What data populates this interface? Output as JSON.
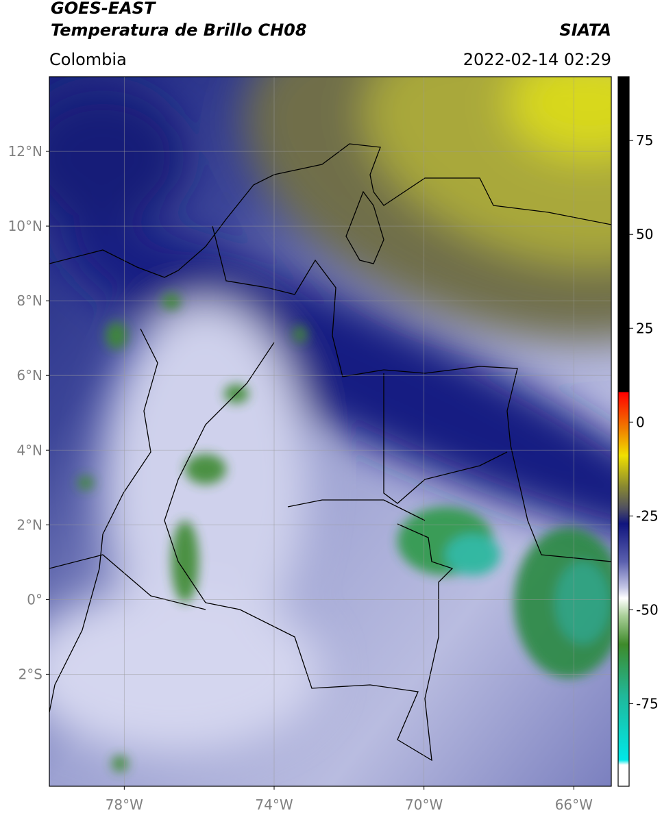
{
  "header": {
    "title": [
      "GOES-EAST",
      "Temperatura de Brillo CH08"
    ],
    "source": "SIATA",
    "region": "Colombia",
    "datetime": "2022-02-14 02:29"
  },
  "map": {
    "xlim": [
      -80,
      -65
    ],
    "ylim": [
      -5,
      14
    ],
    "lat_ticks": [
      {
        "value": 12,
        "label": "12°N"
      },
      {
        "value": 10,
        "label": "10°N"
      },
      {
        "value": 8,
        "label": "8°N"
      },
      {
        "value": 6,
        "label": "6°N"
      },
      {
        "value": 4,
        "label": "4°N"
      },
      {
        "value": 2,
        "label": "2°N"
      },
      {
        "value": 0,
        "label": "0°"
      },
      {
        "value": -2,
        "label": "2°S"
      }
    ],
    "lon_ticks": [
      {
        "value": -78,
        "label": "78°W"
      },
      {
        "value": -74,
        "label": "74°W"
      },
      {
        "value": -70,
        "label": "70°W"
      },
      {
        "value": -66,
        "label": "66°W"
      }
    ]
  },
  "colorbar": {
    "lim": [
      -97,
      92
    ],
    "ticks": [
      75,
      50,
      25,
      0,
      -25,
      -50,
      -75
    ]
  }
}
